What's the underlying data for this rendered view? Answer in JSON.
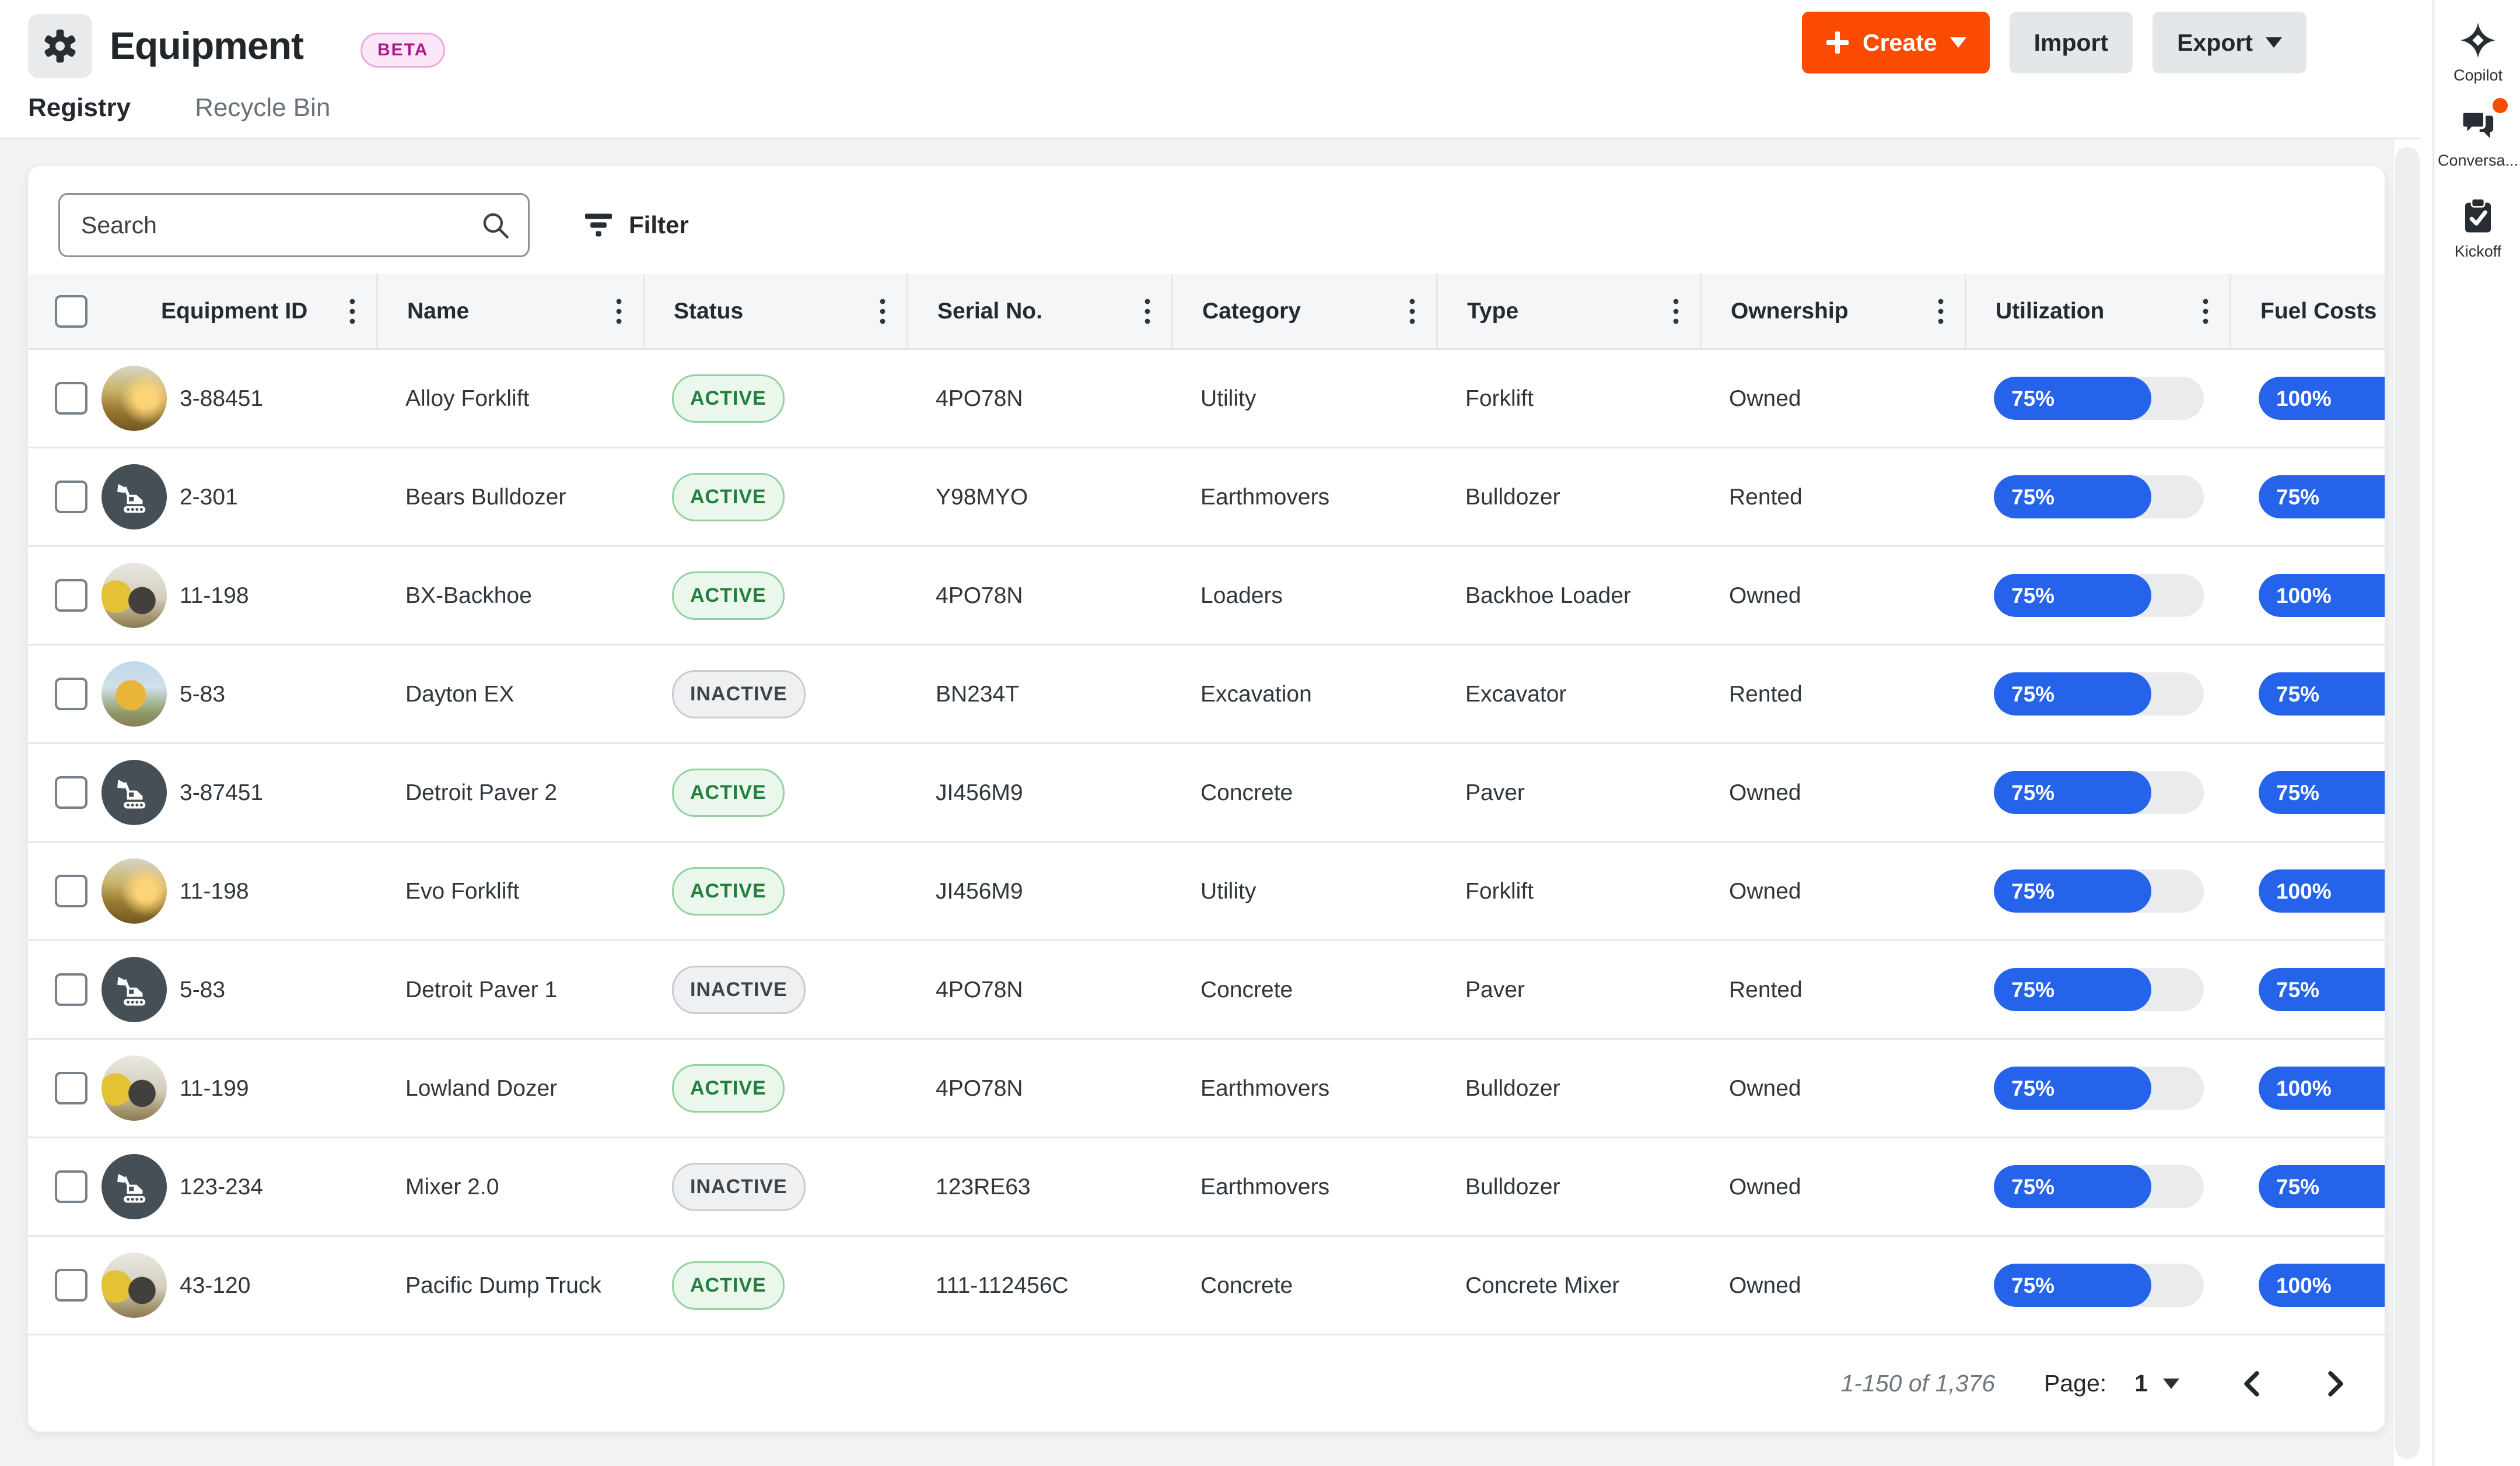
{
  "header": {
    "title": "Equipment",
    "beta_label": "BETA",
    "create_label": "Create",
    "import_label": "Import",
    "export_label": "Export"
  },
  "tabs": {
    "registry": "Registry",
    "recycle_bin": "Recycle Bin"
  },
  "toolbar": {
    "search_placeholder": "Search",
    "filter_label": "Filter"
  },
  "table": {
    "columns": [
      "Equipment ID",
      "Name",
      "Status",
      "Serial No.",
      "Category",
      "Type",
      "Ownership",
      "Utilization",
      "Fuel Costs"
    ],
    "rows": [
      {
        "id": "3-88451",
        "name": "Alloy Forklift",
        "status": "ACTIVE",
        "serial": "4PO78N",
        "category": "Utility",
        "type": "Forklift",
        "ownership": "Owned",
        "utilization": 75,
        "fuel": 100,
        "avatar": "photo-sunset"
      },
      {
        "id": "2-301",
        "name": "Bears Bulldozer",
        "status": "ACTIVE",
        "serial": "Y98MYO",
        "category": "Earthmovers",
        "type": "Bulldozer",
        "ownership": "Rented",
        "utilization": 75,
        "fuel": 75,
        "avatar": "icon"
      },
      {
        "id": "11-198",
        "name": "BX-Backhoe",
        "status": "ACTIVE",
        "serial": "4PO78N",
        "category": "Loaders",
        "type": "Backhoe Loader",
        "ownership": "Owned",
        "utilization": 75,
        "fuel": 100,
        "avatar": "photo-yard"
      },
      {
        "id": "5-83",
        "name": "Dayton EX",
        "status": "INACTIVE",
        "serial": "BN234T",
        "category": "Excavation",
        "type": "Excavator",
        "ownership": "Rented",
        "utilization": 75,
        "fuel": 75,
        "avatar": "photo-excavator"
      },
      {
        "id": "3-87451",
        "name": "Detroit Paver 2",
        "status": "ACTIVE",
        "serial": "JI456M9",
        "category": "Concrete",
        "type": "Paver",
        "ownership": "Owned",
        "utilization": 75,
        "fuel": 75,
        "avatar": "icon"
      },
      {
        "id": "11-198",
        "name": "Evo Forklift",
        "status": "ACTIVE",
        "serial": "JI456M9",
        "category": "Utility",
        "type": "Forklift",
        "ownership": "Owned",
        "utilization": 75,
        "fuel": 100,
        "avatar": "photo-sunset"
      },
      {
        "id": "5-83",
        "name": "Detroit Paver 1",
        "status": "INACTIVE",
        "serial": "4PO78N",
        "category": "Concrete",
        "type": "Paver",
        "ownership": "Rented",
        "utilization": 75,
        "fuel": 75,
        "avatar": "icon"
      },
      {
        "id": "11-199",
        "name": "Lowland Dozer",
        "status": "ACTIVE",
        "serial": "4PO78N",
        "category": "Earthmovers",
        "type": "Bulldozer",
        "ownership": "Owned",
        "utilization": 75,
        "fuel": 100,
        "avatar": "photo-yard"
      },
      {
        "id": "123-234",
        "name": "Mixer 2.0",
        "status": "INACTIVE",
        "serial": "123RE63",
        "category": "Earthmovers",
        "type": "Bulldozer",
        "ownership": "Owned",
        "utilization": 75,
        "fuel": 75,
        "avatar": "icon"
      },
      {
        "id": "43-120",
        "name": "Pacific Dump Truck",
        "status": "ACTIVE",
        "serial": "111-112456C",
        "category": "Concrete",
        "type": "Concrete Mixer",
        "ownership": "Owned",
        "utilization": 75,
        "fuel": 100,
        "avatar": "photo-yard"
      }
    ],
    "status_labels": {
      "active": "ACTIVE",
      "inactive": "INACTIVE"
    }
  },
  "pagination": {
    "range_label": "1-150 of 1,376",
    "page_label": "Page:",
    "page_value": "1"
  },
  "side_rail": {
    "copilot_label": "Copilot",
    "conversations_label": "Conversa...",
    "kickoff_label": "Kickoff"
  },
  "colors": {
    "accent_orange": "#fa4b00",
    "pill_blue": "#2563eb",
    "active_green": "#20803a",
    "beta_pink": "#ae1691",
    "dark_avatar": "#474f56"
  }
}
